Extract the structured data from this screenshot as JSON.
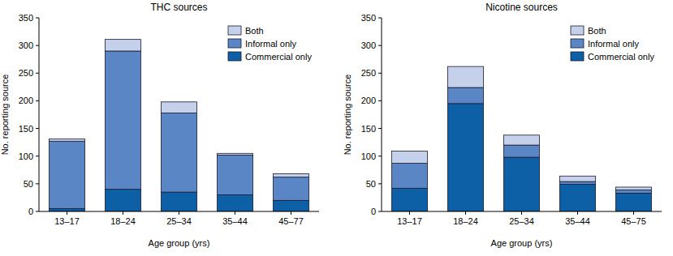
{
  "chart_data": [
    {
      "type": "bar",
      "stacked": true,
      "title": "THC sources",
      "x_label": "Age group (yrs)",
      "y_label": "No. reporting source",
      "categories": [
        "13–17",
        "18–24",
        "25–34",
        "35–44",
        "45–77"
      ],
      "series": [
        {
          "name": "Commercial only",
          "color": "#0d5fa6",
          "values": [
            5,
            40,
            35,
            30,
            20
          ]
        },
        {
          "name": "Informal only",
          "color": "#5b86c6",
          "values": [
            122,
            250,
            143,
            72,
            42
          ]
        },
        {
          "name": "Both",
          "color": "#c5d1ea",
          "values": [
            4,
            21,
            20,
            3,
            6
          ]
        }
      ],
      "ylim": [
        0,
        350
      ],
      "yticks": [
        0,
        50,
        100,
        150,
        200,
        250,
        300,
        350
      ],
      "legend": "upper right",
      "grid": false
    },
    {
      "type": "bar",
      "stacked": true,
      "title": "Nicotine sources",
      "x_label": "Age group (yrs)",
      "y_label": "No. reporting source",
      "categories": [
        "13–17",
        "18–24",
        "25–34",
        "35–44",
        "45–75"
      ],
      "series": [
        {
          "name": "Commercial only",
          "color": "#0d5fa6",
          "values": [
            42,
            195,
            98,
            49,
            33
          ]
        },
        {
          "name": "Informal only",
          "color": "#5b86c6",
          "values": [
            45,
            29,
            22,
            5,
            6
          ]
        },
        {
          "name": "Both",
          "color": "#c5d1ea",
          "values": [
            22,
            38,
            18,
            10,
            5
          ]
        }
      ],
      "ylim": [
        0,
        350
      ],
      "yticks": [
        0,
        50,
        100,
        150,
        200,
        250,
        300,
        350
      ],
      "legend": "upper right",
      "grid": false
    }
  ]
}
